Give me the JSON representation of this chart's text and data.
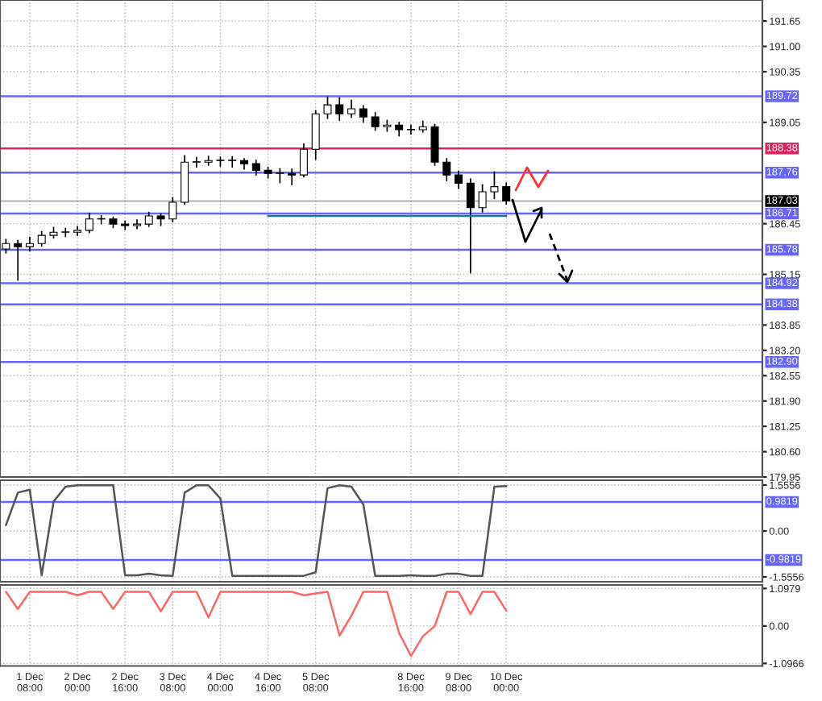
{
  "chart_data": [
    {
      "type": "candlestick",
      "tick_labels": "y",
      "grid": true,
      "categories": [
        null,
        null,
        null,
        null,
        null,
        null,
        null,
        null,
        null,
        null,
        null,
        null,
        null,
        null,
        null,
        null,
        null,
        null,
        null,
        null,
        null,
        null,
        null,
        null,
        null,
        null,
        null,
        null,
        null,
        null,
        null,
        null,
        null,
        null,
        null,
        null,
        null,
        null,
        null,
        null,
        null,
        null,
        null,
        null,
        null,
        null,
        null,
        null,
        null,
        null,
        null,
        null,
        null,
        null,
        null,
        null,
        null,
        null,
        null,
        null,
        null,
        null,
        null,
        null
      ],
      "ohlc": [
        [
          185.8,
          186.05,
          185.7,
          185.94
        ],
        [
          185.94,
          186.02,
          185.0,
          185.86
        ],
        [
          185.86,
          186.1,
          185.75,
          185.94
        ],
        [
          185.94,
          186.25,
          185.88,
          186.15
        ],
        [
          186.15,
          186.35,
          186.08,
          186.23
        ],
        [
          186.23,
          186.33,
          186.12,
          186.23
        ],
        [
          186.23,
          186.38,
          186.15,
          186.28
        ],
        [
          186.28,
          186.72,
          186.22,
          186.57
        ],
        [
          186.57,
          186.66,
          186.45,
          186.57
        ],
        [
          186.57,
          186.62,
          186.35,
          186.44
        ],
        [
          186.44,
          186.52,
          186.3,
          186.4
        ],
        [
          186.4,
          186.55,
          186.32,
          186.44
        ],
        [
          186.44,
          186.74,
          186.38,
          186.65
        ],
        [
          186.65,
          186.7,
          186.4,
          186.57
        ],
        [
          186.57,
          187.12,
          186.5,
          187.0
        ],
        [
          187.0,
          188.2,
          186.95,
          188.03
        ],
        [
          188.03,
          188.15,
          187.9,
          188.03
        ],
        [
          188.03,
          188.18,
          187.95,
          188.07
        ],
        [
          188.07,
          188.16,
          187.92,
          188.07
        ],
        [
          188.07,
          188.17,
          187.9,
          188.07
        ],
        [
          188.07,
          188.12,
          187.85,
          187.99
        ],
        [
          187.99,
          188.08,
          187.7,
          187.82
        ],
        [
          187.82,
          187.9,
          187.62,
          187.74
        ],
        [
          187.74,
          187.86,
          187.5,
          187.74
        ],
        [
          187.74,
          187.85,
          187.45,
          187.7
        ],
        [
          187.7,
          188.5,
          187.65,
          188.36
        ],
        [
          188.36,
          189.35,
          188.1,
          189.27
        ],
        [
          189.27,
          189.7,
          189.15,
          189.5
        ],
        [
          189.5,
          189.68,
          189.1,
          189.27
        ],
        [
          189.27,
          189.62,
          189.18,
          189.4
        ],
        [
          189.4,
          189.48,
          189.05,
          189.19
        ],
        [
          189.19,
          189.3,
          188.85,
          188.94
        ],
        [
          188.94,
          189.1,
          188.82,
          188.98
        ],
        [
          188.98,
          189.05,
          188.7,
          188.86
        ],
        [
          188.86,
          188.98,
          188.75,
          188.86
        ],
        [
          188.86,
          189.08,
          188.8,
          188.94
        ],
        [
          188.94,
          189.0,
          187.95,
          188.03
        ],
        [
          188.03,
          188.12,
          187.55,
          187.7
        ],
        [
          187.7,
          187.8,
          187.35,
          187.49
        ],
        [
          187.49,
          187.6,
          185.19,
          186.86
        ],
        [
          186.86,
          187.45,
          186.75,
          187.27
        ],
        [
          187.27,
          187.78,
          187.1,
          187.4
        ],
        [
          187.4,
          187.5,
          186.95,
          187.03
        ],
        null,
        null,
        null,
        null,
        null,
        null,
        null,
        null,
        null,
        null,
        null,
        null,
        null,
        null,
        null,
        null,
        null,
        null,
        null,
        null,
        null
      ],
      "series": [
        {
          "type": "line",
          "color": "#1f7a8c",
          "values": [
            null,
            null,
            null,
            null,
            null,
            null,
            null,
            null,
            null,
            null,
            null,
            null,
            null,
            null,
            null,
            null,
            null,
            null,
            null,
            null,
            null,
            null,
            186.65,
            186.65,
            186.65,
            186.65,
            186.65,
            186.65,
            186.65,
            186.65,
            186.65,
            186.65,
            186.65,
            186.65,
            186.65,
            186.65,
            186.65,
            186.65,
            186.65,
            186.65,
            186.65,
            186.65,
            186.65,
            null,
            null,
            null,
            null,
            null,
            null,
            null,
            null,
            null,
            null,
            null,
            null,
            null,
            null,
            null,
            null,
            null,
            null,
            null,
            null,
            null
          ]
        }
      ],
      "ylim": [
        179.95,
        192.19
      ],
      "yticks": [
        179.95,
        {
          "value": 180.6,
          "label": "180.60"
        },
        181.25,
        {
          "value": 181.9,
          "label": "181.90"
        },
        182.55,
        {
          "value": 183.2,
          "label": "183.20"
        },
        183.85,
        185.15,
        186.45,
        189.05,
        190.35,
        {
          "value": 191.0,
          "label": "191.00"
        },
        191.65
      ],
      "ref_lines": [
        {
          "axis": "y",
          "value": 189.72,
          "label": "189.72",
          "color": "#6666ff"
        },
        {
          "axis": "y",
          "value": 188.38,
          "label": "188.38",
          "color": "#e0245e"
        },
        {
          "axis": "y",
          "value": 187.76,
          "label": "187.76",
          "color": "#6666ff"
        },
        {
          "axis": "y",
          "value": 187.03,
          "label": "187.03",
          "color": "#000000"
        },
        {
          "axis": "y",
          "value": 186.71,
          "label": "186.71",
          "color": "#6666ff"
        },
        {
          "axis": "y",
          "value": 185.78,
          "label": "185.78",
          "color": "#6666ff"
        },
        {
          "axis": "y",
          "value": 184.92,
          "label": "184.92",
          "color": "#6666ff"
        },
        {
          "axis": "y",
          "value": 184.38,
          "label": "184.38",
          "color": "#6666ff"
        },
        {
          "axis": "y",
          "value": 182.9,
          "label": "182.90",
          "color": "#6666ff"
        }
      ]
    },
    {
      "type": "line",
      "tick_labels": "y",
      "grid": true,
      "categories": [
        null,
        null,
        null,
        null,
        null,
        null,
        null,
        null,
        null,
        null,
        null,
        null,
        null,
        null,
        null,
        null,
        null,
        null,
        null,
        null,
        null,
        null,
        null,
        null,
        null,
        null,
        null,
        null,
        null,
        null,
        null,
        null,
        null,
        null,
        null,
        null,
        null,
        null,
        null,
        null,
        null,
        null,
        null,
        null,
        null,
        null,
        null,
        null,
        null,
        null,
        null,
        null,
        null,
        null,
        null,
        null,
        null,
        null,
        null,
        null,
        null,
        null,
        null,
        null
      ],
      "series": [
        {
          "color": "#555555",
          "values": [
            0.2,
            1.3,
            1.4,
            -1.5,
            1.0,
            1.5,
            1.55,
            1.55,
            1.55,
            1.55,
            -1.5,
            -1.5,
            -1.45,
            -1.5,
            -1.52,
            1.3,
            1.55,
            1.55,
            1.1,
            -1.52,
            -1.52,
            -1.52,
            -1.52,
            -1.52,
            -1.52,
            -1.52,
            -1.4,
            1.45,
            1.55,
            1.5,
            0.9,
            -1.52,
            -1.52,
            -1.52,
            -1.5,
            -1.52,
            -1.52,
            -1.45,
            -1.45,
            -1.52,
            -1.52,
            1.5,
            1.52,
            null,
            null,
            null,
            null,
            null,
            null,
            null,
            null,
            null,
            null,
            null,
            null,
            null,
            null,
            null,
            null,
            null,
            null,
            null,
            null,
            null
          ]
        }
      ],
      "ylim": [
        -1.72,
        1.72
      ],
      "yticks": [
        -1.5556,
        {
          "value": 0,
          "label": "0.00"
        },
        1.5556
      ],
      "ref_lines": [
        {
          "axis": "y",
          "value": 0.9819,
          "label": "0.9819",
          "color": "#6666ff"
        },
        {
          "axis": "y",
          "value": -0.9819,
          "label": "-0.9819",
          "color": "#6666ff"
        }
      ]
    },
    {
      "type": "line",
      "grid": true,
      "categories": [
        null,
        null,
        "1 Dec 08:00",
        null,
        null,
        null,
        "2 Dec 00:00",
        null,
        null,
        null,
        "2 Dec 16:00",
        null,
        null,
        null,
        "3 Dec 08:00",
        null,
        null,
        null,
        "4 Dec 00:00",
        null,
        null,
        null,
        "4 Dec 16:00",
        null,
        null,
        null,
        "5 Dec 08:00",
        null,
        null,
        null,
        null,
        null,
        null,
        null,
        "8 Dec 16:00",
        null,
        null,
        null,
        "9 Dec 08:00",
        null,
        null,
        null,
        "10 Dec 00:00",
        null,
        null,
        null,
        null,
        null,
        null,
        null,
        null,
        null,
        null,
        null,
        null,
        null,
        null,
        null,
        null,
        null,
        null,
        null,
        null,
        null
      ],
      "series": [
        {
          "color": "#ff6666",
          "values": [
            1.0,
            0.5,
            1.0,
            1.0,
            1.0,
            1.0,
            0.9,
            1.0,
            1.0,
            0.5,
            1.0,
            1.0,
            1.0,
            0.43,
            1.0,
            1.0,
            1.0,
            0.25,
            1.0,
            1.0,
            1.0,
            1.0,
            1.0,
            1.0,
            1.0,
            0.9,
            0.95,
            1.0,
            -0.28,
            0.3,
            1.0,
            1.0,
            1.0,
            -0.2,
            -0.88,
            -0.3,
            0.0,
            1.0,
            1.0,
            0.35,
            1.0,
            1.0,
            0.45,
            null,
            null,
            null,
            null,
            null,
            null,
            null,
            null,
            null,
            null,
            null,
            null,
            null,
            null,
            null,
            null,
            null,
            null,
            null,
            null,
            null
          ]
        }
      ],
      "ylim": [
        -1.17,
        1.2
      ],
      "yticks": [
        -1.0966,
        {
          "value": 0,
          "label": "0.00"
        },
        1.0979
      ]
    }
  ]
}
